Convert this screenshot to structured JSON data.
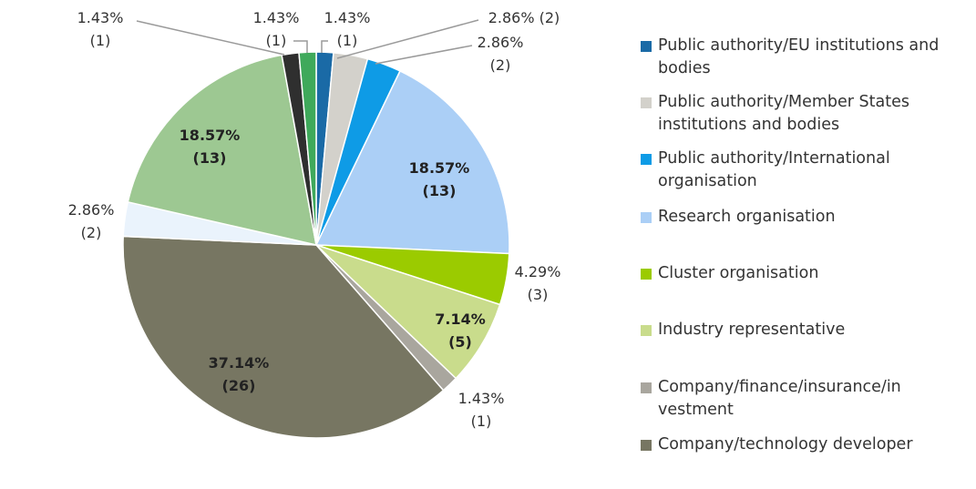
{
  "chart_data": {
    "type": "pie",
    "title": "",
    "legend_position": "right",
    "slices": [
      {
        "label": "Public authority/EU institutions and bodies",
        "value": 1,
        "pct": "1.43%",
        "count": "(1)",
        "color": "#1A6AA6"
      },
      {
        "label": "Public authority/Member States institutions and bodies",
        "value": 2,
        "pct": "2.86%",
        "count": "(2)",
        "color": "#D3D1CB"
      },
      {
        "label": "Public authority/International organisation",
        "value": 2,
        "pct": "2.86%",
        "count": "(2)",
        "color": "#0E9BE6"
      },
      {
        "label": "Research organisation",
        "value": 13,
        "pct": "18.57%",
        "count": "(13)",
        "color": "#ABCFF6"
      },
      {
        "label": "Cluster organisation",
        "value": 3,
        "pct": "4.29%",
        "count": "(3)",
        "color": "#9BCB00"
      },
      {
        "label": "Industry representative",
        "value": 5,
        "pct": "7.14%",
        "count": "(5)",
        "color": "#C9DC8C"
      },
      {
        "label": "Company/finance/insurance/in vestment",
        "value": 1,
        "pct": "1.43%",
        "count": "(1)",
        "color": "#A9A69E"
      },
      {
        "label": "Company/technology developer",
        "value": 26,
        "pct": "37.14%",
        "count": "(26)",
        "color": "#777662"
      },
      {
        "label": "",
        "value": 2,
        "pct": "2.86%",
        "count": "(2)",
        "color": "#EAF3FC"
      },
      {
        "label": "",
        "value": 13,
        "pct": "18.57%",
        "count": "(13)",
        "color": "#9DC892"
      },
      {
        "label": "",
        "value": 1,
        "pct": "1.43%",
        "count": "(1)",
        "color": "#2F2F2F"
      },
      {
        "label": "",
        "value": 1,
        "pct": "1.43%",
        "count": "(1)",
        "color": "#3FA95B"
      }
    ]
  }
}
